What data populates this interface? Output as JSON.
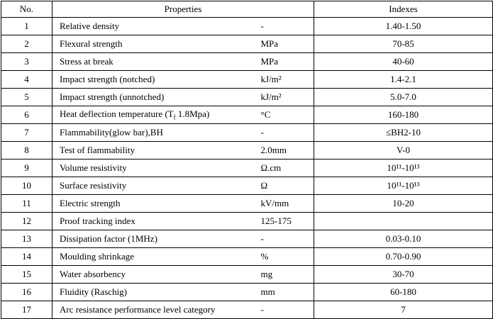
{
  "table": {
    "header": [
      "No.",
      "Properties",
      "Indexes"
    ],
    "rows": [
      [
        1,
        "Relative density",
        "-",
        "1.40-1.50"
      ],
      [
        2,
        "Flexural strength",
        "MPa",
        "70-85"
      ],
      [
        3,
        "Stress at break",
        "MPa",
        "40-60"
      ],
      [
        4,
        "Impact strength (notched)",
        "kJ/m²",
        "1.4-2.1"
      ],
      [
        5,
        "Impact strength (unnotched)",
        "kJ/m²",
        "5.0-7.0"
      ],
      [
        6,
        [
          "Heat deflection temperature (T",
          "f",
          " 1.8Mpa)"
        ],
        "°C",
        "160-180"
      ],
      [
        7,
        "Flammability(glow bar),BH",
        "-",
        "≤BH2-10"
      ],
      [
        8,
        "Test of flammability",
        "2.0mm",
        "V-0"
      ],
      [
        9,
        "Volume resistivity",
        "Ω.cm",
        "10¹¹-10¹³"
      ],
      [
        10,
        "Surface resistivity",
        "Ω",
        "10¹¹-10¹³"
      ],
      [
        11,
        "Electric strength",
        "kV/mm",
        "10-20"
      ],
      [
        12,
        "Proof tracking index",
        "125-175",
        null
      ],
      [
        13,
        "Dissipation factor (1MHz)",
        "-",
        "0.03-0.10"
      ],
      [
        14,
        "Moulding shrinkage",
        "%",
        "0.70-0.90"
      ],
      [
        15,
        "Water absorbency",
        "mg",
        "30-70"
      ],
      [
        16,
        "Fluidity (Raschig)",
        "mm",
        "60-180"
      ],
      [
        17,
        "Arc resistance performance level category",
        "-",
        "7"
      ]
    ]
  }
}
